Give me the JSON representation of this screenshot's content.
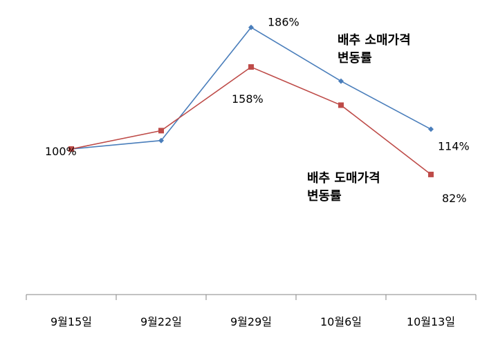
{
  "chart_data": {
    "type": "line",
    "categories": [
      "9월15일",
      "9월22일",
      "9월29일",
      "10월6일",
      "10월13일"
    ],
    "series": [
      {
        "name": "배추 소매가격 변동률",
        "label_lines": [
          "배추 소매가격",
          "변동률"
        ],
        "color": "#4a7ebb",
        "marker": "diamond",
        "values": [
          100,
          106,
          186,
          148,
          114
        ]
      },
      {
        "name": "배추 도매가격 변동률",
        "label_lines": [
          "배추 도매가격",
          "변동률"
        ],
        "color": "#be4b48",
        "marker": "square",
        "values": [
          100,
          113,
          158,
          131,
          82
        ]
      }
    ],
    "data_labels": [
      {
        "text": "100%",
        "series": 0,
        "index": 0
      },
      {
        "text": "186%",
        "series": 0,
        "index": 2
      },
      {
        "text": "114%",
        "series": 0,
        "index": 4
      },
      {
        "text": "158%",
        "series": 1,
        "index": 2
      },
      {
        "text": "82%",
        "series": 1,
        "index": 4
      }
    ],
    "ylim": [
      0,
      200
    ],
    "grid": false,
    "legend": "inline labels"
  }
}
